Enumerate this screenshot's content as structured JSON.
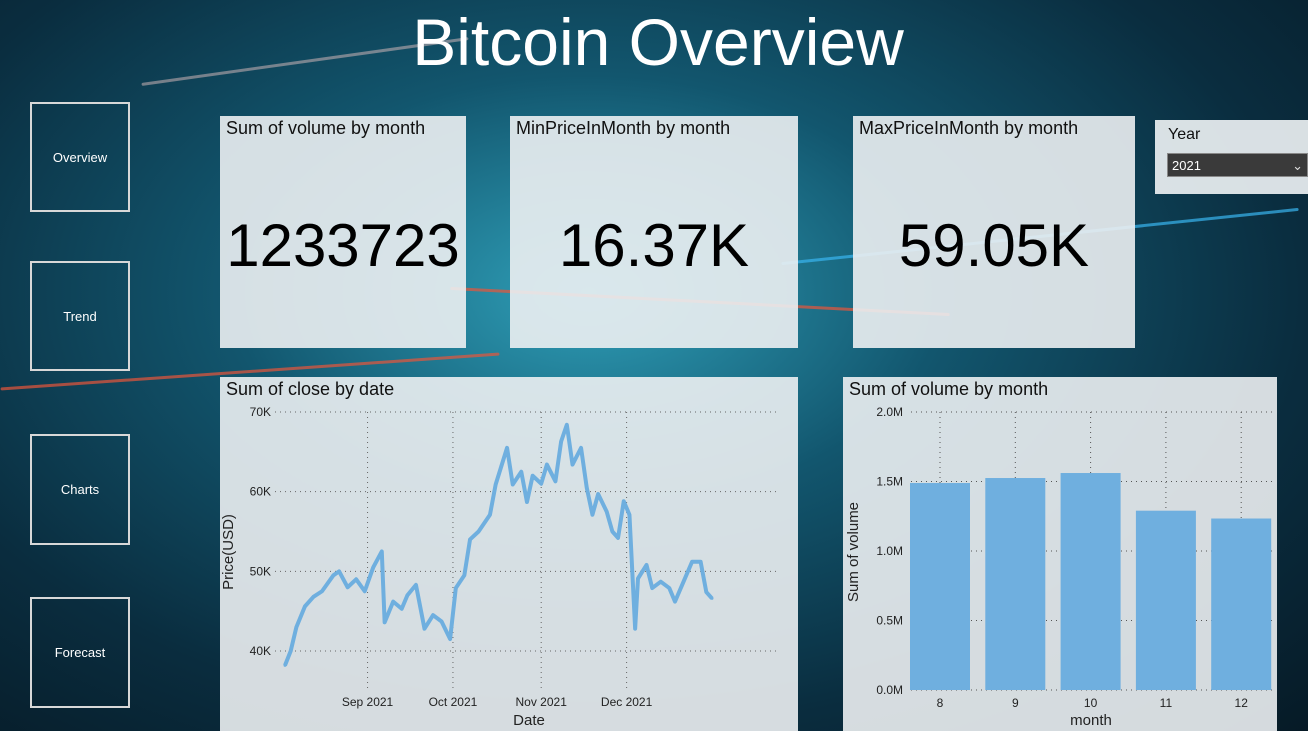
{
  "header": {
    "title": "Bitcoin Overview"
  },
  "nav": [
    {
      "label": "Overview"
    },
    {
      "label": "Trend"
    },
    {
      "label": "Charts"
    },
    {
      "label": "Forecast"
    }
  ],
  "kpis": [
    {
      "title": "Sum of volume by month",
      "value": "1233723"
    },
    {
      "title": "MinPriceInMonth by month",
      "value": "16.37K"
    },
    {
      "title": "MaxPriceInMonth by month",
      "value": "59.05K"
    }
  ],
  "slicer": {
    "label": "Year",
    "selected": "2021",
    "icon": "chevron-down-icon"
  },
  "colors": {
    "series": "#6fafdf",
    "card_bg": "#ecf0f2"
  },
  "chart_data": [
    {
      "type": "line",
      "title": "Sum of close by date",
      "xlabel": "Date",
      "ylabel": "Price(USD)",
      "ylim": [
        40000,
        70000
      ],
      "yticks": [
        "40K",
        "50K",
        "60K",
        "70K"
      ],
      "xticks": [
        "Sep 2021",
        "Oct 2021",
        "Nov 2021",
        "Dec 2021"
      ],
      "xtick_dates": [
        "2021-09-01",
        "2021-10-01",
        "2021-11-01",
        "2021-12-01"
      ],
      "grid": true,
      "x": [
        "2021-08-03",
        "2021-08-05",
        "2021-08-07",
        "2021-08-10",
        "2021-08-13",
        "2021-08-16",
        "2021-08-20",
        "2021-08-22",
        "2021-08-25",
        "2021-08-28",
        "2021-08-31",
        "2021-09-03",
        "2021-09-06",
        "2021-09-07",
        "2021-09-10",
        "2021-09-13",
        "2021-09-15",
        "2021-09-18",
        "2021-09-21",
        "2021-09-24",
        "2021-09-27",
        "2021-09-30",
        "2021-10-02",
        "2021-10-05",
        "2021-10-07",
        "2021-10-10",
        "2021-10-14",
        "2021-10-16",
        "2021-10-20",
        "2021-10-22",
        "2021-10-25",
        "2021-10-27",
        "2021-10-29",
        "2021-11-01",
        "2021-11-03",
        "2021-11-06",
        "2021-11-08",
        "2021-11-10",
        "2021-11-12",
        "2021-11-15",
        "2021-11-17",
        "2021-11-19",
        "2021-11-21",
        "2021-11-24",
        "2021-11-26",
        "2021-11-28",
        "2021-11-30",
        "2021-12-02",
        "2021-12-04",
        "2021-12-05",
        "2021-12-08",
        "2021-12-10",
        "2021-12-13",
        "2021-12-16",
        "2021-12-18",
        "2021-12-21",
        "2021-12-24",
        "2021-12-27",
        "2021-12-29",
        "2021-12-31"
      ],
      "values": [
        38200,
        40000,
        43000,
        45600,
        46800,
        47500,
        49500,
        50000,
        48000,
        49000,
        47500,
        50500,
        52500,
        43600,
        46200,
        45300,
        47000,
        48300,
        42800,
        44500,
        43700,
        41500,
        47900,
        49500,
        54000,
        55000,
        57100,
        60900,
        65500,
        60900,
        62500,
        58700,
        62000,
        61000,
        63400,
        61300,
        66300,
        68400,
        63400,
        65500,
        60500,
        57100,
        59700,
        57500,
        55000,
        54200,
        58800,
        57100,
        42800,
        49100,
        50800,
        47900,
        48700,
        47900,
        46200,
        48700,
        51200,
        51200,
        47400,
        46600
      ]
    },
    {
      "type": "bar",
      "title": "Sum of volume by month",
      "xlabel": "month",
      "ylabel": "Sum of volume",
      "categories": [
        "8",
        "9",
        "10",
        "11",
        "12"
      ],
      "values": [
        1489000,
        1525000,
        1561000,
        1290000,
        1233723
      ],
      "ylim": [
        0,
        2000000
      ],
      "yticks": [
        "0.0M",
        "0.5M",
        "1.0M",
        "1.5M",
        "2.0M"
      ],
      "grid": true
    }
  ]
}
